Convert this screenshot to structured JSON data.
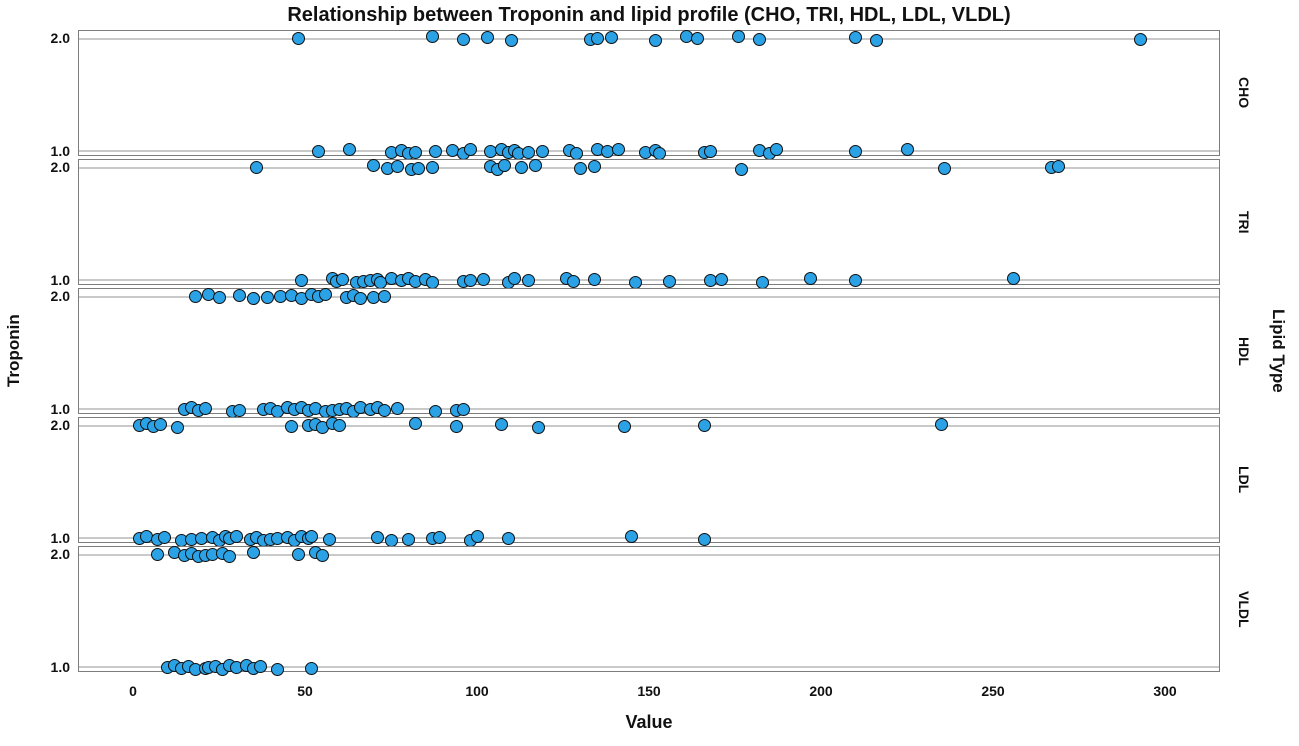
{
  "title": "Relationship between Troponin and lipid profile (CHO, TRI, HDL, LDL, VLDL)",
  "chart_data": {
    "type": "scatter",
    "title": "Relationship between Troponin and lipid profile (CHO, TRI, HDL, LDL, VLDL)",
    "xlabel": "Value",
    "ylabel": "Troponin",
    "panel_axis_label": "Lipid Type",
    "legend_position": "none",
    "grid": true,
    "x_ticks": [
      0,
      50,
      100,
      150,
      200,
      250,
      300
    ],
    "x_range": [
      -16,
      316
    ],
    "y_tick_labels": {
      "top": "2.0",
      "bottom": "1.0"
    },
    "colors": {
      "point_fill": "#2BA2E5",
      "point_stroke": "#0f1011",
      "gridline": "#c9c9c9",
      "panel_border": "#7d7d7d",
      "text": "#111111"
    },
    "panels": [
      {
        "label": "CHO",
        "troponin_2_values": [
          48,
          87,
          96,
          103,
          110,
          133,
          135,
          139,
          152,
          161,
          164,
          176,
          182,
          210,
          216,
          293
        ],
        "troponin_1_values": [
          54,
          63,
          75,
          78,
          80,
          82,
          88,
          93,
          96,
          98,
          104,
          107,
          109,
          111,
          112,
          115,
          119,
          127,
          129,
          135,
          138,
          141,
          149,
          152,
          153,
          166,
          168,
          182,
          185,
          187,
          210,
          225
        ]
      },
      {
        "label": "TRI",
        "troponin_2_values": [
          36,
          70,
          74,
          77,
          81,
          83,
          87,
          104,
          106,
          108,
          113,
          117,
          130,
          134,
          177,
          236,
          267,
          269
        ],
        "troponin_1_values": [
          49,
          58,
          59,
          61,
          65,
          67,
          69,
          71,
          72,
          75,
          78,
          80,
          82,
          85,
          87,
          96,
          98,
          102,
          109,
          111,
          115,
          126,
          128,
          134,
          146,
          156,
          168,
          171,
          183,
          197,
          210,
          256
        ]
      },
      {
        "label": "HDL",
        "troponin_2_values": [
          18,
          22,
          25,
          31,
          35,
          39,
          43,
          46,
          49,
          52,
          54,
          56,
          62,
          64,
          66,
          70,
          73
        ],
        "troponin_1_values": [
          15,
          17,
          19,
          21,
          29,
          31,
          38,
          40,
          42,
          45,
          47,
          49,
          51,
          53,
          56,
          58,
          60,
          62,
          64,
          66,
          69,
          71,
          73,
          77,
          88,
          94,
          96
        ]
      },
      {
        "label": "LDL",
        "troponin_2_values": [
          2,
          4,
          6,
          8,
          13,
          46,
          51,
          53,
          55,
          58,
          60,
          82,
          94,
          107,
          118,
          143,
          166,
          235
        ],
        "troponin_1_values": [
          2,
          4,
          7,
          9,
          14,
          17,
          20,
          23,
          25,
          27,
          28,
          30,
          34,
          36,
          38,
          40,
          42,
          45,
          47,
          49,
          51,
          52,
          57,
          71,
          75,
          80,
          87,
          89,
          98,
          100,
          109,
          145,
          166
        ]
      },
      {
        "label": "VLDL",
        "troponin_2_values": [
          7,
          12,
          15,
          17,
          19,
          21,
          23,
          26,
          28,
          35,
          48,
          53,
          55
        ],
        "troponin_1_values": [
          10,
          12,
          14,
          16,
          18,
          21,
          22,
          24,
          26,
          28,
          30,
          33,
          35,
          37,
          42,
          52
        ]
      }
    ]
  }
}
